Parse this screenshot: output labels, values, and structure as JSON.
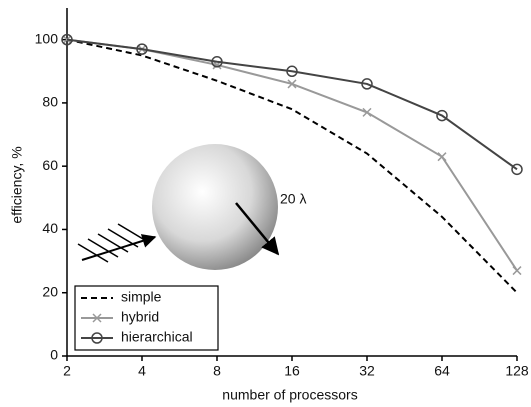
{
  "chart_data": {
    "type": "line",
    "x_label": "number of processors",
    "y_label": "efficiency, %",
    "annotation": "20 λ",
    "x": [
      2,
      4,
      8,
      16,
      32,
      64,
      128
    ],
    "xlim": [
      2,
      128
    ],
    "xticks": [
      2,
      4,
      8,
      16,
      32,
      64,
      128
    ],
    "xscale": "log",
    "xlog_base": 2,
    "ylim": [
      0,
      110
    ],
    "yticks": [
      0,
      20,
      40,
      60,
      80,
      100
    ],
    "legend": "lower left",
    "series": [
      {
        "name": "simple",
        "color": "#000000",
        "linestyle": "dashed",
        "marker": "none",
        "values": [
          100,
          95,
          87,
          78,
          64,
          44,
          20
        ]
      },
      {
        "name": "hybrid",
        "color": "#999999",
        "linestyle": "solid",
        "marker": "x",
        "values": [
          100,
          97,
          92,
          86,
          77,
          63,
          27
        ]
      },
      {
        "name": "hierarchical",
        "color": "#444444",
        "linestyle": "solid",
        "marker": "o",
        "values": [
          100,
          97,
          93,
          90,
          86,
          76,
          59
        ]
      }
    ]
  }
}
